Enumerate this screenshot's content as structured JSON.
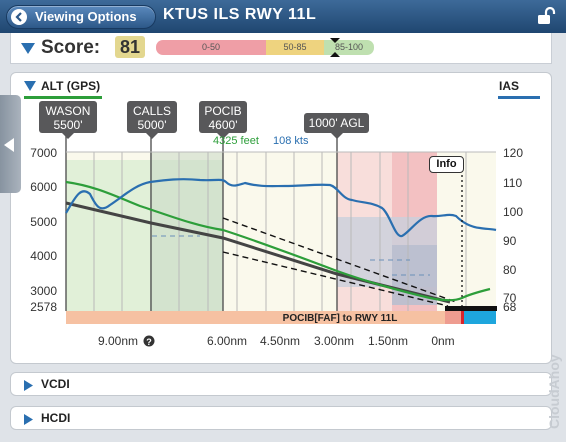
{
  "header": {
    "viewing_options": "Viewing Options",
    "title": "KTUS ILS RWY 11L"
  },
  "score": {
    "label": "Score:",
    "value": "81",
    "ranges": [
      "0-50",
      "50-85",
      "85-100"
    ],
    "colors": {
      "low": "#ef9ea6",
      "mid": "#eed37f",
      "high": "#bfe0b0"
    }
  },
  "alt_panel": {
    "alt_tab": "ALT (GPS)",
    "ias_tab": "IAS",
    "fixes": [
      {
        "name": "WASON",
        "alt": "5500'"
      },
      {
        "name": "CALLS",
        "alt": "5000'"
      },
      {
        "name": "POCIB",
        "alt": "4600'"
      }
    ],
    "agl_marker": "1000' AGL",
    "readout_feet": "4325 feet",
    "readout_kts": "108 kts",
    "info_button": "Info",
    "segment_label": "POCIB[FAF] to RWY 11L",
    "colors": {
      "altitude": "#2d9e3a",
      "ias": "#2a6fb0",
      "path": "#444444"
    }
  },
  "chart_data": {
    "type": "line",
    "xlabel": "",
    "ylabel": "",
    "x_ticks": [
      "9.00nm",
      "6.00nm",
      "4.50nm",
      "3.00nm",
      "1.50nm",
      "0nm"
    ],
    "y_left_ticks": [
      "7000",
      "6000",
      "5000",
      "4000",
      "3000",
      "2578"
    ],
    "y_right_ticks": [
      "120",
      "110",
      "100",
      "90",
      "80",
      "70",
      "68"
    ],
    "ylim_left": [
      2578,
      7000
    ],
    "ylim_right": [
      68,
      120
    ],
    "series": []
  },
  "sections": {
    "vcdi": "VCDI",
    "hcdi": "HCDI"
  },
  "watermark": "CloudAhoy"
}
